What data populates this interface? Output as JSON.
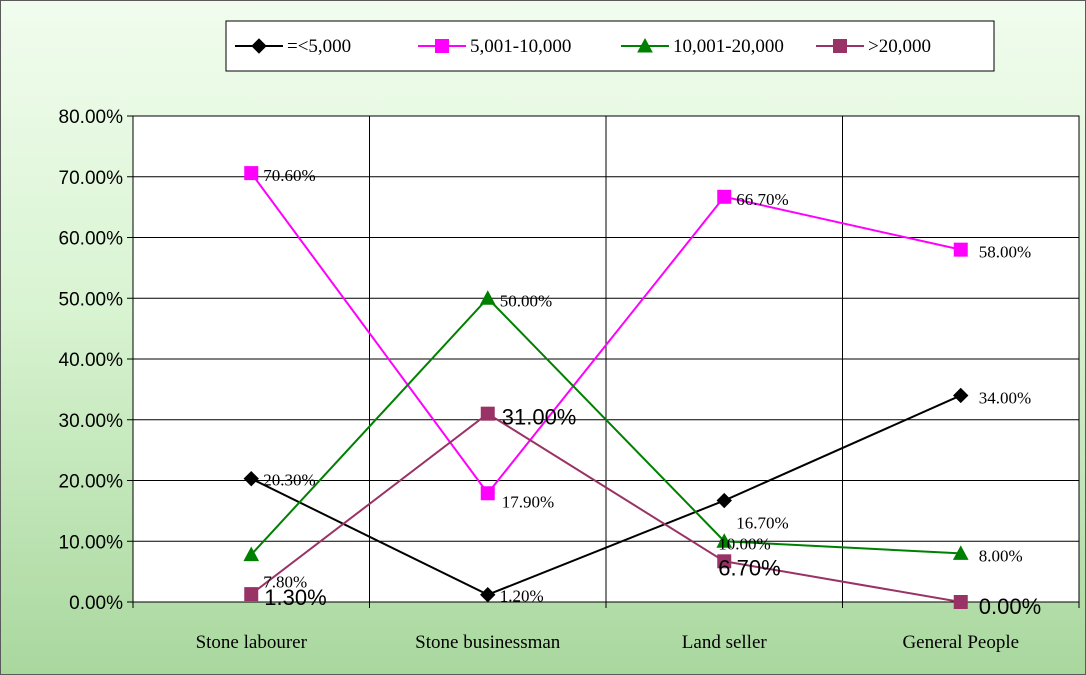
{
  "chart_data": {
    "type": "line",
    "categories": [
      "Stone labourer",
      "Stone businessman",
      "Land seller",
      "General People"
    ],
    "ylim": [
      0,
      80
    ],
    "yticks": [
      "0.00%",
      "10.00%",
      "20.00%",
      "30.00%",
      "40.00%",
      "50.00%",
      "60.00%",
      "70.00%",
      "80.00%"
    ],
    "grid": true,
    "legend_position": "top",
    "series": [
      {
        "name": "=<5,000",
        "color": "#000000",
        "marker": "diamond",
        "values": [
          20.3,
          1.2,
          16.7,
          34.0
        ],
        "labels": [
          "20.30%",
          "1.20%",
          "16.70%",
          "34.00%"
        ]
      },
      {
        "name": "5,001-10,000",
        "color": "#ff00ff",
        "marker": "square",
        "values": [
          70.6,
          17.9,
          66.7,
          58.0
        ],
        "labels": [
          "70.60%",
          "17.90%",
          "66.70%",
          "58.00%"
        ]
      },
      {
        "name": "10,001-20,000",
        "color": "#008000",
        "marker": "triangle",
        "values": [
          7.8,
          50.0,
          10.0,
          8.0
        ],
        "labels": [
          "7.80%",
          "50.00%",
          "10.00%",
          "8.00%"
        ]
      },
      {
        "name": ">20,000",
        "color": "#993366",
        "marker": "square",
        "values": [
          1.3,
          31.0,
          6.7,
          0.0
        ],
        "labels": [
          "1.30%",
          "31.00%",
          "6.70%",
          "0.00%"
        ]
      }
    ]
  }
}
